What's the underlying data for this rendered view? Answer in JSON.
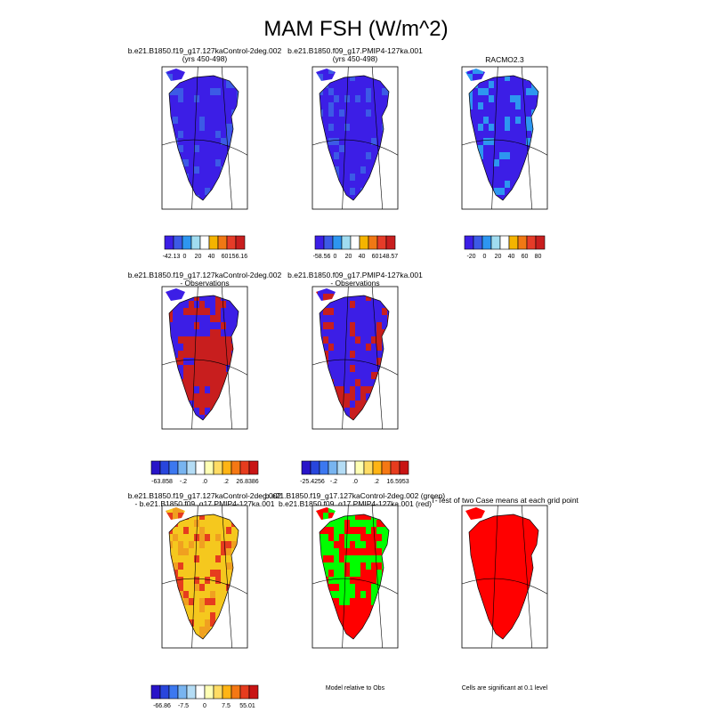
{
  "title": "MAM FSH (W/m^2)",
  "palettes": {
    "abs": [
      "#3c1ee6",
      "#3c5ae6",
      "#2d96f0",
      "#a0dcf0",
      "#ffffff",
      "#f5b400",
      "#f07814",
      "#e63c28",
      "#c81e1e"
    ],
    "diff": [
      "#2814c8",
      "#2846dc",
      "#3c78f0",
      "#78b4f0",
      "#b4dcf5",
      "#ffffff",
      "#ffffb4",
      "#ffdc64",
      "#ffb414",
      "#f57814",
      "#e63c1e",
      "#c81414"
    ]
  },
  "colors": {
    "orange_fill": "#f0a020",
    "yellow_fill": "#f5c81e",
    "pale_fill": "#c8e6f5",
    "significant": "#ff0000",
    "green_case": "#00ff00",
    "red_case": "#ff0000"
  },
  "chart_data": [
    {
      "type": "heatmap",
      "panel": "r1c1",
      "title_lines": [
        "b.e21.B1850.f19_g17.127kaControl-2deg.002",
        "(yrs 450-498)"
      ],
      "dominant_color": "#3c1ee6",
      "secondary_color": "#3c5ae6",
      "colorbar": {
        "type": "abs",
        "labels": [
          "-42.13",
          "0",
          "20",
          "40",
          "60",
          "156.16"
        ]
      }
    },
    {
      "type": "heatmap",
      "panel": "r1c2",
      "title_lines": [
        "b.e21.B1850.f09_g17.PMIP4-127ka.001",
        "(yrs 450-498)"
      ],
      "dominant_color": "#3c1ee6",
      "secondary_color": "#3c5ae6",
      "colorbar": {
        "type": "abs",
        "labels": [
          "-58.56",
          "0",
          "20",
          "40",
          "60",
          "148.57"
        ]
      }
    },
    {
      "type": "heatmap",
      "panel": "r1c3",
      "title_lines": [
        "RACMO2.3"
      ],
      "dominant_color": "#3c1ee6",
      "secondary_color": "#2d96f0",
      "colorbar": {
        "type": "abs",
        "labels": [
          "-20",
          "0",
          "20",
          "40",
          "60",
          "80"
        ]
      }
    },
    {
      "type": "heatmap",
      "panel": "r2c1",
      "title_lines": [
        "b.e21.B1850.f19_g17.127kaControl-2deg.002",
        "- Observations"
      ],
      "dominant_color": "#c81e1e",
      "secondary_color": "#3c1ee6",
      "colorbar": {
        "type": "diff",
        "labels": [
          "-63.858",
          "-.2",
          ".0",
          ".2",
          "26.8386"
        ]
      }
    },
    {
      "type": "heatmap",
      "panel": "r2c2",
      "title_lines": [
        "b.e21.B1850.f09_g17.PMIP4-127ka.001",
        "- Observations"
      ],
      "dominant_color": "#3c1ee6",
      "secondary_color": "#c81e1e",
      "colorbar": {
        "type": "diff",
        "labels": [
          "-25.4256",
          "-.2",
          ".0",
          ".2",
          "16.5953"
        ]
      }
    },
    {
      "type": "heatmap",
      "panel": "r3c1",
      "title_lines": [
        "b.e21.B1850.f19_g17.127kaControl-2deg.002",
        "- b.e21.B1850.f09_g17.PMIP4-127ka.001"
      ],
      "dominant_color": "#f5c81e",
      "secondary_color": "#f0a020",
      "colorbar": {
        "type": "diff",
        "labels": [
          "-66.86",
          "-7.5",
          "0",
          "7.5",
          "55.01"
        ]
      }
    },
    {
      "type": "heatmap",
      "panel": "r3c2",
      "title_lines": [
        "b.e21.B1850.f19_g17.127kaControl-2deg.002 (green)",
        "b.e21.B1850.f09_g17.PMIP4-127ka.001 (red)"
      ],
      "dominant_color": "#00ff00",
      "secondary_color": "#ff0000",
      "footer": "Model relative to Obs"
    },
    {
      "type": "heatmap",
      "panel": "r3c3",
      "title_lines": [
        "T-Test of two Case means at each grid point"
      ],
      "dominant_color": "#ff0000",
      "secondary_color": "#ff0000",
      "footer": "Cells are significant at 0.1 level"
    }
  ]
}
